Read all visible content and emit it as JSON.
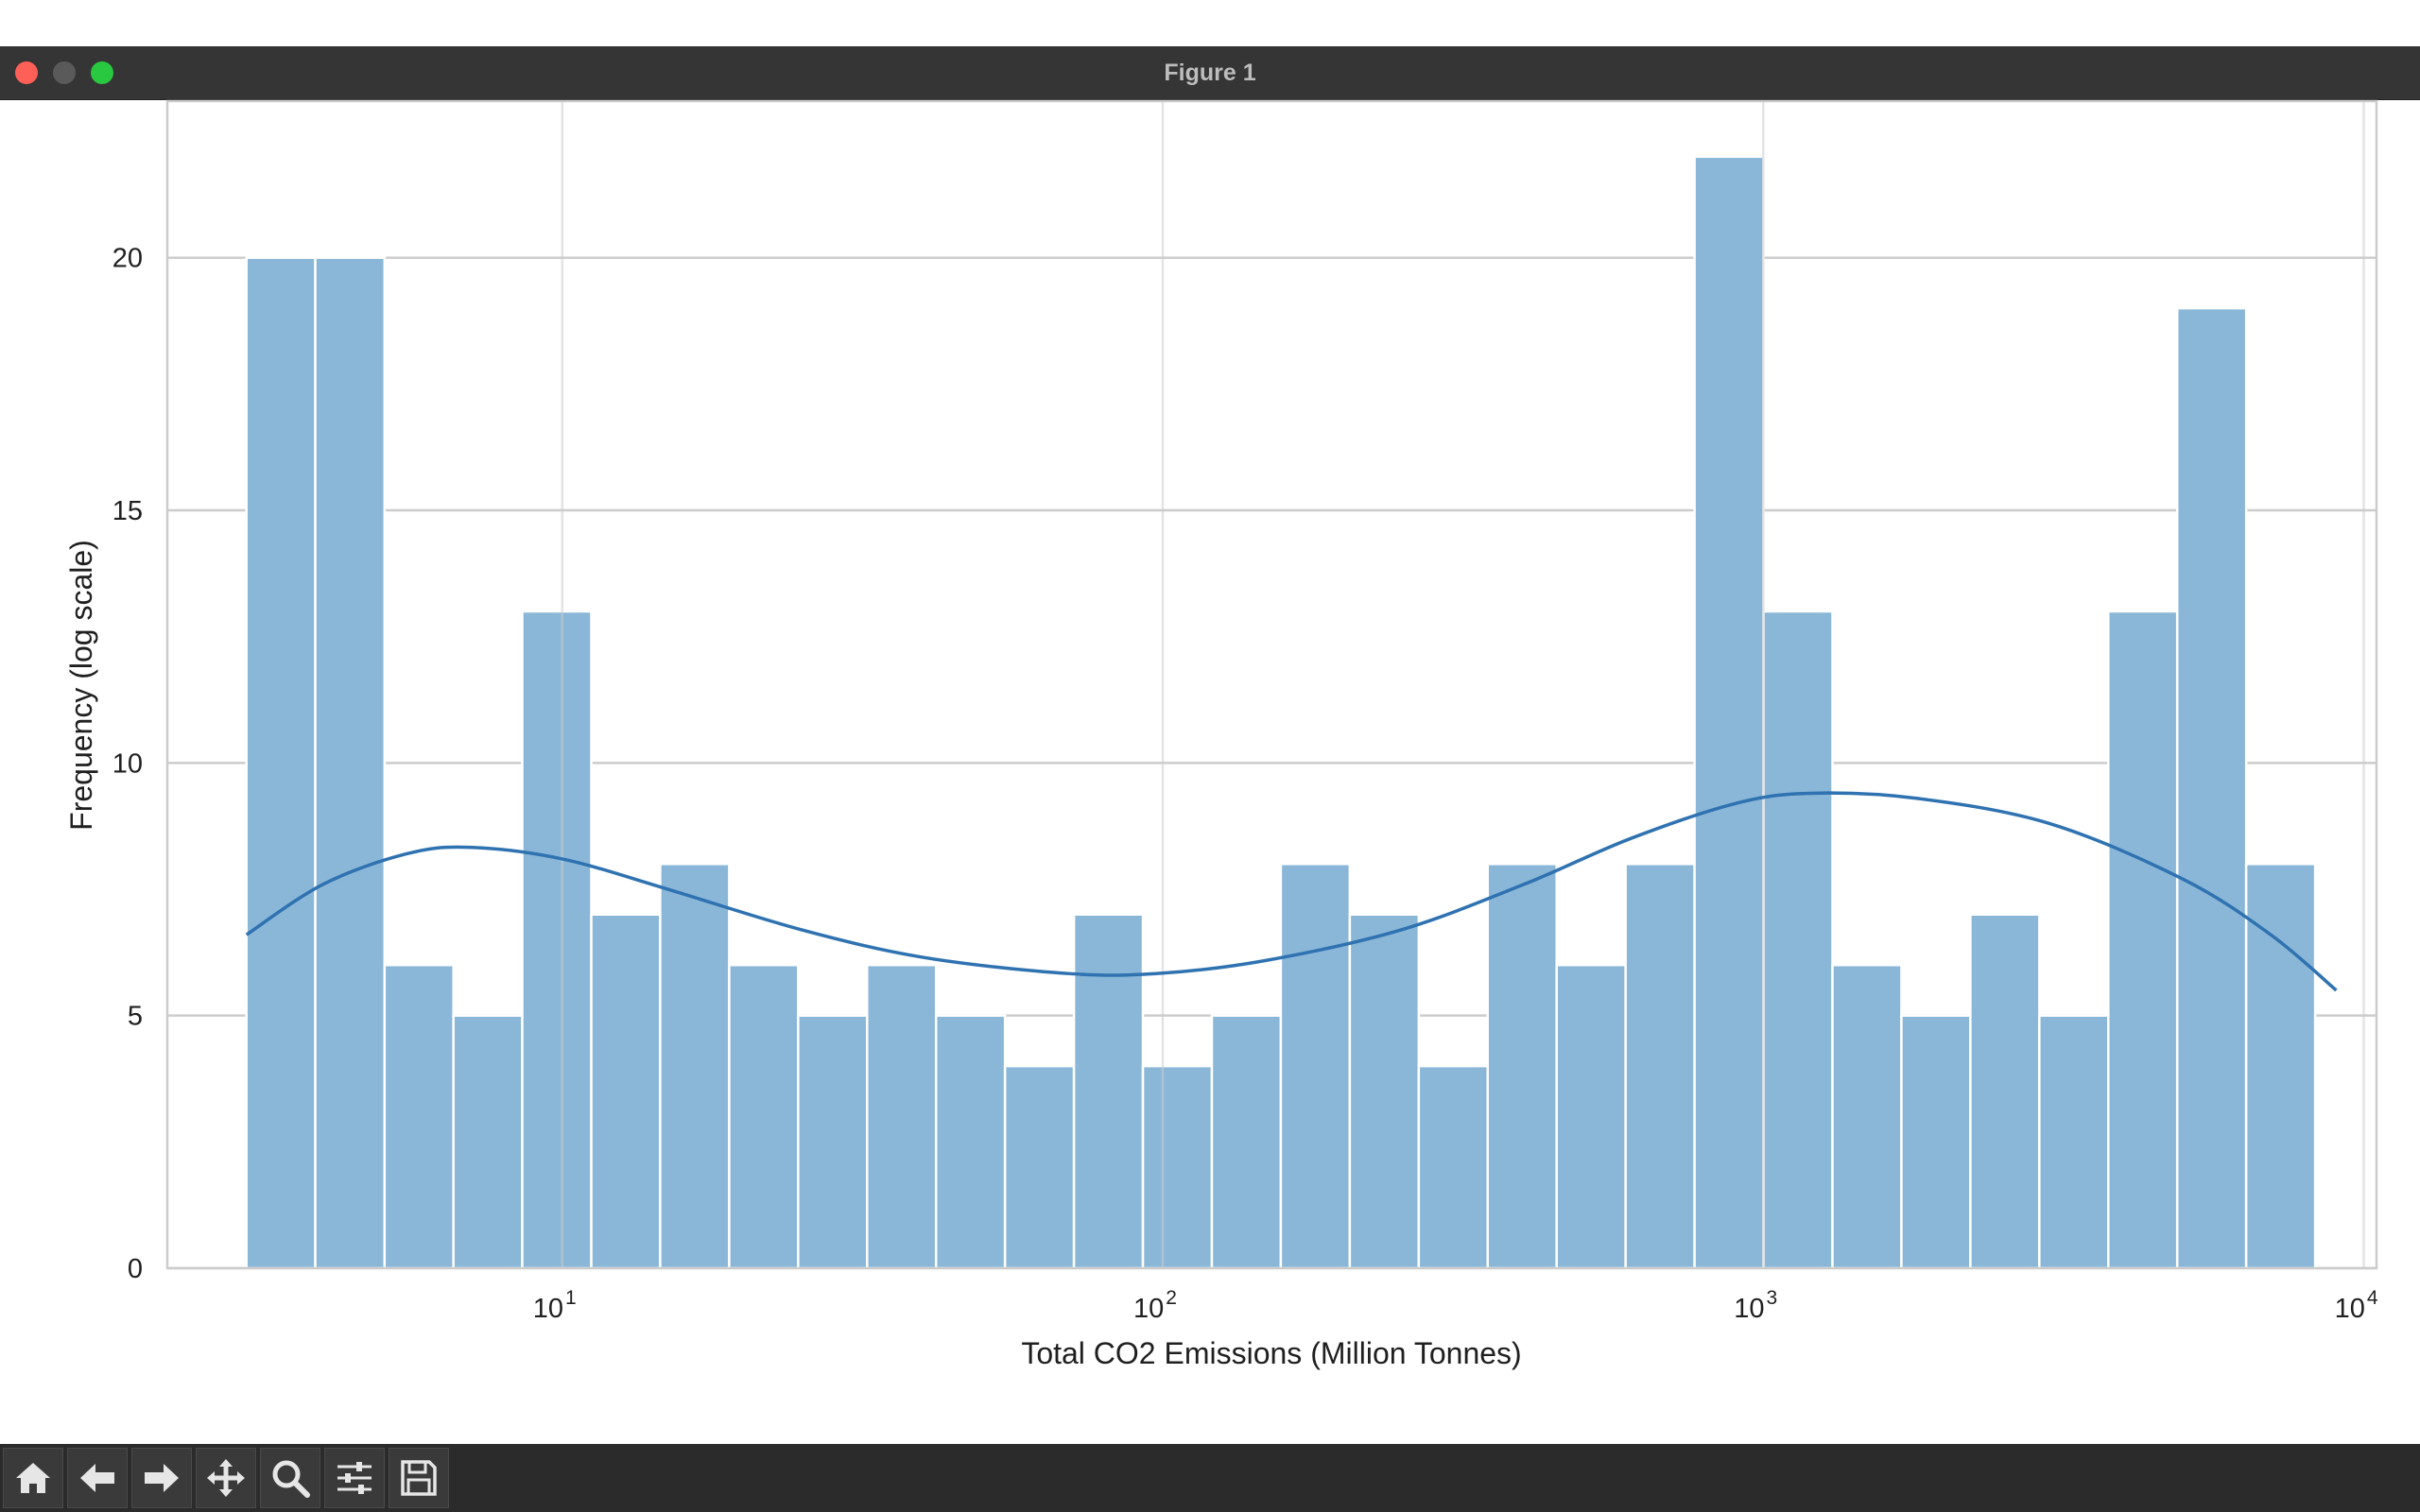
{
  "window": {
    "title": "Figure 1"
  },
  "toolbar": {
    "buttons": [
      "home-icon",
      "back-arrow-icon",
      "forward-arrow-icon",
      "pan-icon",
      "zoom-icon",
      "configure-subplots-icon",
      "save-icon"
    ]
  },
  "chart_data": {
    "type": "bar",
    "xlabel": "Total CO2 Emissions (Million Tonnes)",
    "ylabel": "Frequency (log scale)",
    "xscale": "log",
    "xlim": [
      2.2,
      10500
    ],
    "ylim": [
      0,
      23.1
    ],
    "x_ticks": [
      {
        "base": "10",
        "exp": "1",
        "value": 10
      },
      {
        "base": "10",
        "exp": "2",
        "value": 100
      },
      {
        "base": "10",
        "exp": "3",
        "value": 1000
      },
      {
        "base": "10",
        "exp": "4",
        "value": 10000
      }
    ],
    "y_ticks": [
      0,
      5,
      10,
      15,
      20
    ],
    "grid": true,
    "bar_color": "#8ab7d7",
    "curve_color": "#2f72b1",
    "bin_edges": [
      2.98,
      3.88,
      5.06,
      6.59,
      8.58,
      11.18,
      14.56,
      18.97,
      24.71,
      32.19,
      41.93,
      54.62,
      71.15,
      92.68,
      120.73,
      157.27,
      204.87,
      266.87,
      347.63,
      452.84,
      589.89,
      768.42,
      1000.97,
      1303.91,
      1698.52,
      2212.56,
      2882.17,
      3754.43,
      4890.66,
      6370.77,
      8298.82
    ],
    "values": [
      20,
      20,
      6,
      5,
      13,
      7,
      8,
      6,
      5,
      6,
      5,
      4,
      7,
      4,
      5,
      8,
      7,
      4,
      8,
      6,
      8,
      22,
      13,
      6,
      5,
      7,
      5,
      13,
      19,
      8
    ],
    "kde": {
      "x": [
        2.98,
        4.0,
        5.5,
        7.0,
        10.0,
        15.0,
        25.0,
        40.0,
        70.0,
        100.0,
        150.0,
        250.0,
        400.0,
        600.0,
        900.0,
        1200.0,
        1800.0,
        3000.0,
        5000.0,
        7000.0,
        9000.0
      ],
      "y": [
        6.6,
        7.6,
        8.2,
        8.33,
        8.1,
        7.5,
        6.7,
        6.15,
        5.83,
        5.84,
        6.1,
        6.7,
        7.6,
        8.5,
        9.2,
        9.4,
        9.3,
        8.8,
        7.7,
        6.6,
        5.5
      ]
    }
  }
}
